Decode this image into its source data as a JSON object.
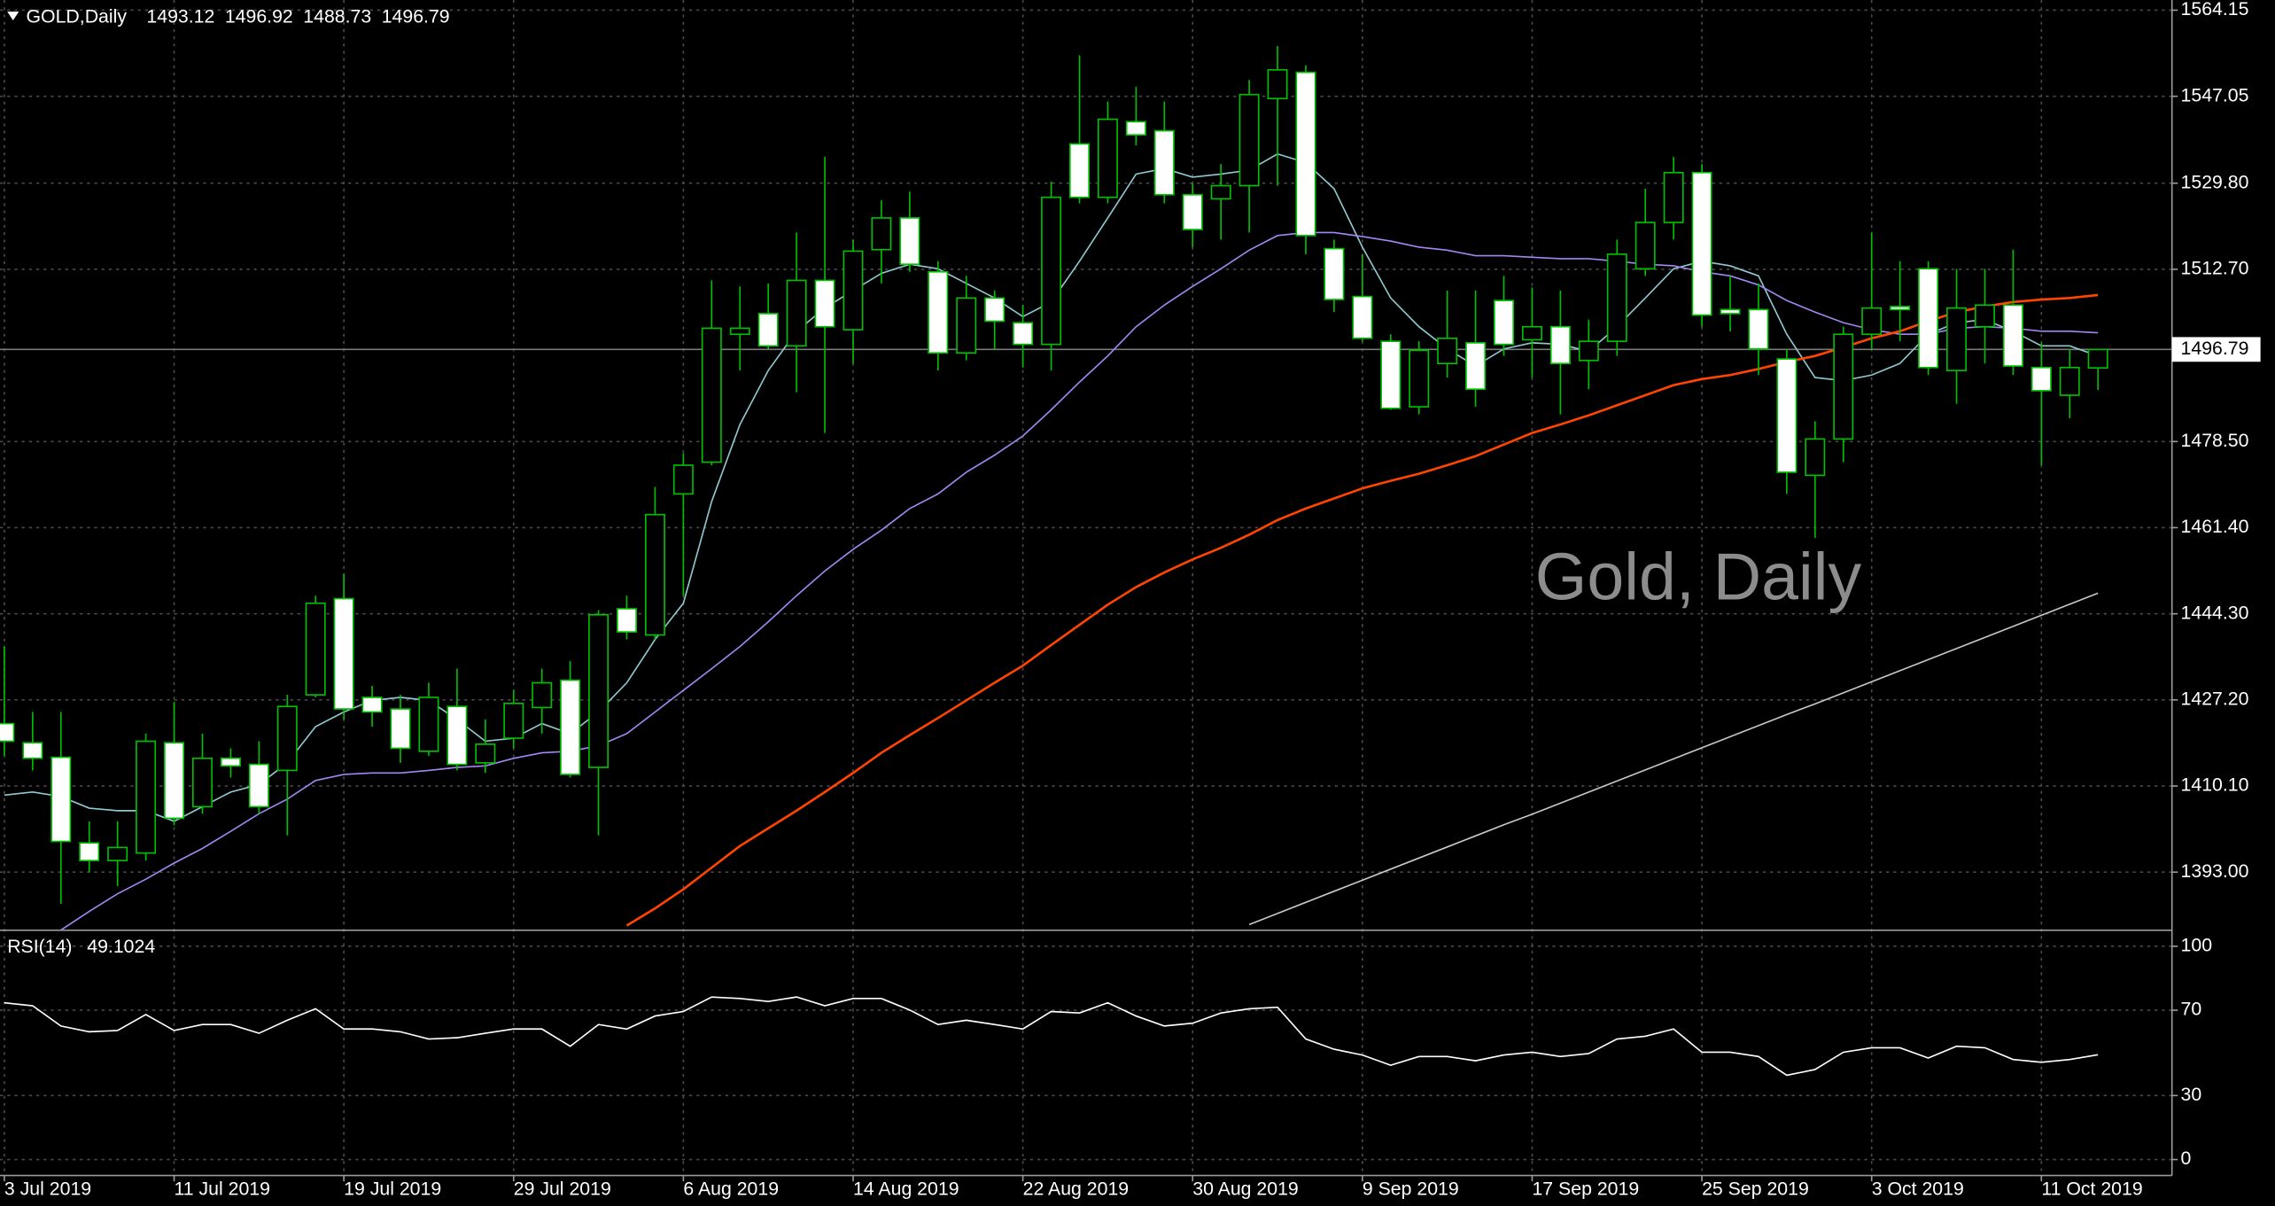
{
  "chart_data": [
    {
      "type": "candlestick",
      "title": "GOLD,Daily",
      "watermark": "Gold, Daily",
      "categories": [
        "3 Jul 2019",
        null,
        null,
        null,
        null,
        null,
        "11 Jul 2019",
        null,
        null,
        null,
        null,
        null,
        "19 Jul 2019",
        null,
        null,
        null,
        null,
        null,
        "29 Jul 2019",
        null,
        null,
        null,
        null,
        null,
        "6 Aug 2019",
        null,
        null,
        null,
        null,
        null,
        "14 Aug 2019",
        null,
        null,
        null,
        null,
        null,
        "22 Aug 2019",
        null,
        null,
        null,
        null,
        null,
        "30 Aug 2019",
        null,
        null,
        null,
        null,
        null,
        "9 Sep 2019",
        null,
        null,
        null,
        null,
        null,
        "17 Sep 2019",
        null,
        null,
        null,
        null,
        null,
        "25 Sep 2019",
        null,
        null,
        null,
        null,
        null,
        "3 Oct 2019",
        null,
        null,
        null,
        null,
        null,
        "11 Oct 2019",
        null,
        null
      ],
      "open": [
        1422.5,
        1418.7,
        1415.8,
        1398.8,
        1395.3,
        1396.8,
        1418.7,
        1406.0,
        1415.6,
        1414.4,
        1413.2,
        1428.2,
        1447.3,
        1427.7,
        1425.4,
        1417.0,
        1425.9,
        1414.7,
        1419.6,
        1425.7,
        1431.1,
        1413.8,
        1445.3,
        1440.1,
        1468.1,
        1474.4,
        1499.8,
        1503.9,
        1497.5,
        1510.5,
        1500.7,
        1516.6,
        1522.9,
        1512.2,
        1496.1,
        1507.0,
        1502.1,
        1497.8,
        1537.6,
        1527.0,
        1542.0,
        1540.2,
        1527.5,
        1526.7,
        1529.3,
        1546.6,
        1551.8,
        1516.8,
        1507.3,
        1498.4,
        1485.4,
        1494.0,
        1498.1,
        1506.5,
        1498.7,
        1501.3,
        1494.6,
        1498.4,
        1512.8,
        1522.0,
        1531.9,
        1504.7,
        1504.7,
        1494.9,
        1471.8,
        1479.0,
        1499.8,
        1505.3,
        1512.8,
        1492.6,
        1501.3,
        1505.6,
        1493.2,
        1487.7,
        1493.12
      ],
      "high": [
        1437.8,
        1424.8,
        1424.8,
        1403.1,
        1403.1,
        1420.5,
        1426.8,
        1420.5,
        1417.6,
        1419.0,
        1428.2,
        1447.9,
        1452.2,
        1430.0,
        1428.2,
        1430.6,
        1433.4,
        1423.3,
        1429.1,
        1433.4,
        1434.9,
        1445.0,
        1447.9,
        1469.5,
        1476.2,
        1510.5,
        1509.3,
        1509.9,
        1520.0,
        1535.0,
        1518.6,
        1526.4,
        1528.1,
        1514.3,
        1511.4,
        1508.5,
        1505.6,
        1530.1,
        1555.2,
        1546.0,
        1548.9,
        1546.0,
        1529.8,
        1533.6,
        1550.3,
        1557.0,
        1553.2,
        1518.6,
        1515.7,
        1499.8,
        1498.4,
        1508.5,
        1508.5,
        1511.4,
        1509.1,
        1508.5,
        1502.7,
        1518.6,
        1528.7,
        1535.0,
        1533.6,
        1511.4,
        1509.9,
        1496.9,
        1482.5,
        1501.3,
        1520.0,
        1514.3,
        1514.3,
        1512.8,
        1512.8,
        1516.6,
        1498.1,
        1496.9,
        1496.92
      ],
      "low": [
        1416.1,
        1413.2,
        1386.7,
        1393.0,
        1390.2,
        1395.3,
        1402.3,
        1404.6,
        1411.8,
        1404.6,
        1400.3,
        1427.7,
        1423.3,
        1421.9,
        1414.7,
        1416.1,
        1413.2,
        1412.7,
        1417.6,
        1420.5,
        1411.8,
        1400.3,
        1439.2,
        1439.2,
        1447.9,
        1473.8,
        1492.6,
        1496.9,
        1488.3,
        1480.2,
        1494.0,
        1509.9,
        1512.2,
        1492.6,
        1494.6,
        1496.9,
        1493.2,
        1492.6,
        1525.8,
        1525.8,
        1537.3,
        1525.8,
        1517.1,
        1518.6,
        1520.0,
        1529.3,
        1515.7,
        1504.2,
        1498.4,
        1484.8,
        1483.9,
        1491.2,
        1485.4,
        1495.5,
        1491.2,
        1483.9,
        1488.9,
        1495.5,
        1511.4,
        1518.6,
        1501.3,
        1500.4,
        1491.7,
        1468.1,
        1459.4,
        1474.4,
        1496.9,
        1498.4,
        1491.7,
        1486.0,
        1494.0,
        1491.7,
        1473.8,
        1483.1,
        1488.73
      ],
      "close": [
        1419.0,
        1415.6,
        1399.1,
        1395.3,
        1397.9,
        1419.0,
        1403.7,
        1415.6,
        1414.1,
        1406.0,
        1425.9,
        1446.4,
        1425.4,
        1424.8,
        1417.6,
        1427.7,
        1414.4,
        1418.4,
        1426.5,
        1430.6,
        1412.4,
        1444.1,
        1440.7,
        1464.0,
        1473.8,
        1501.0,
        1501.0,
        1497.5,
        1510.5,
        1501.3,
        1516.3,
        1522.9,
        1513.7,
        1496.1,
        1507.0,
        1502.4,
        1497.8,
        1527.0,
        1527.0,
        1542.5,
        1539.4,
        1527.5,
        1520.6,
        1529.3,
        1547.4,
        1552.3,
        1519.4,
        1506.7,
        1499.0,
        1485.1,
        1496.6,
        1499.0,
        1488.9,
        1497.8,
        1501.3,
        1494.0,
        1498.4,
        1515.7,
        1522.0,
        1531.9,
        1503.6,
        1503.9,
        1496.9,
        1472.4,
        1479.0,
        1499.8,
        1505.0,
        1504.7,
        1493.2,
        1505.0,
        1505.6,
        1493.5,
        1488.6,
        1493.2,
        1496.79
      ],
      "up_color": "#000000",
      "down_color": "#ffffff",
      "wick_color": "#00c000",
      "series": [
        {
          "color": "#8fc9d0",
          "values": [
            1408.3,
            1408.9,
            1408.0,
            1405.7,
            1405.2,
            1405.2,
            1403.1,
            1406.0,
            1408.9,
            1410.4,
            1414.7,
            1421.9,
            1424.8,
            1427.1,
            1427.7,
            1427.1,
            1423.3,
            1419.0,
            1419.6,
            1422.5,
            1420.5,
            1424.8,
            1430.6,
            1439.2,
            1446.4,
            1466.6,
            1481.9,
            1492.6,
            1500.4,
            1505.0,
            1508.5,
            1511.9,
            1513.7,
            1512.8,
            1509.9,
            1507.0,
            1503.3,
            1506.2,
            1514.3,
            1522.9,
            1531.6,
            1532.7,
            1531.0,
            1531.6,
            1532.4,
            1535.6,
            1533.9,
            1528.7,
            1517.1,
            1507.0,
            1501.3,
            1496.9,
            1493.5,
            1496.9,
            1498.1,
            1497.8,
            1496.4,
            1501.3,
            1507.0,
            1512.8,
            1514.3,
            1513.4,
            1511.4,
            1499.8,
            1491.2,
            1490.6,
            1491.7,
            1494.0,
            1499.8,
            1502.1,
            1502.7,
            1500.4,
            1497.5,
            1497.5,
            1495.5
          ]
        },
        {
          "color": "#a287f0",
          "values": [
            null,
            null,
            1381.5,
            1385.2,
            1388.7,
            1391.6,
            1394.8,
            1397.7,
            1401.1,
            1404.6,
            1407.5,
            1411.2,
            1412.4,
            1412.7,
            1412.7,
            1413.2,
            1413.8,
            1414.1,
            1415.6,
            1416.7,
            1417.0,
            1418.1,
            1420.5,
            1424.8,
            1429.1,
            1433.4,
            1437.8,
            1442.7,
            1447.9,
            1452.8,
            1457.1,
            1460.9,
            1465.2,
            1468.1,
            1472.4,
            1475.8,
            1479.6,
            1484.8,
            1490.3,
            1495.5,
            1501.3,
            1505.6,
            1509.3,
            1512.8,
            1516.5,
            1519.4,
            1520.0,
            1520.0,
            1519.2,
            1518.3,
            1517.1,
            1516.5,
            1515.4,
            1515.4,
            1515.1,
            1514.8,
            1514.8,
            1514.3,
            1513.7,
            1513.4,
            1512.2,
            1511.4,
            1509.6,
            1506.5,
            1504.2,
            1502.1,
            1500.7,
            1499.8,
            1499.8,
            1501.0,
            1501.3,
            1501.0,
            1500.4,
            1500.4,
            1500.1
          ]
        },
        {
          "color": "#ff4500",
          "values": [
            null,
            null,
            null,
            null,
            null,
            null,
            null,
            null,
            null,
            null,
            null,
            null,
            null,
            null,
            null,
            null,
            null,
            null,
            null,
            null,
            null,
            null,
            1382.4,
            1385.8,
            1389.6,
            1393.9,
            1398.2,
            1401.7,
            1405.2,
            1408.9,
            1412.7,
            1416.7,
            1420.2,
            1423.6,
            1427.1,
            1430.6,
            1434.0,
            1438.1,
            1442.1,
            1446.1,
            1449.6,
            1452.5,
            1455.1,
            1457.4,
            1460.0,
            1462.9,
            1465.2,
            1467.2,
            1469.2,
            1470.7,
            1472.1,
            1473.8,
            1475.6,
            1477.9,
            1480.2,
            1481.9,
            1483.7,
            1485.7,
            1487.7,
            1489.7,
            1490.9,
            1491.7,
            1492.9,
            1494.3,
            1495.5,
            1497.2,
            1499.0,
            1500.4,
            1502.4,
            1504.2,
            1505.3,
            1506.2,
            1506.7,
            1507.0,
            1507.6
          ]
        },
        {
          "color": "#c8c8c8",
          "values": [
            null,
            null,
            null,
            null,
            null,
            null,
            null,
            null,
            null,
            null,
            null,
            null,
            null,
            null,
            null,
            null,
            null,
            null,
            null,
            null,
            null,
            null,
            null,
            null,
            null,
            null,
            null,
            null,
            null,
            null,
            null,
            null,
            null,
            null,
            null,
            null,
            null,
            null,
            null,
            null,
            null,
            null,
            null,
            null,
            1382.6,
            1384.8,
            1387.0,
            1389.2,
            1391.4,
            1393.6,
            1395.8,
            1398.0,
            1400.2,
            1402.4,
            1404.5,
            1406.7,
            1408.9,
            1411.1,
            1413.3,
            1415.5,
            1417.7,
            1419.9,
            1422.1,
            1424.3,
            1426.4,
            1428.6,
            1430.8,
            1433.0,
            1435.2,
            1437.4,
            1439.6,
            1441.8,
            1444.0,
            1446.2,
            1448.4
          ]
        }
      ],
      "ylim": [
        1381.46,
        1566.17
      ],
      "yticks": [
        1564.15,
        1547.05,
        {
          "value": 1529.8,
          "label": "1529.80"
        },
        {
          "value": 1512.7,
          "label": "1512.70"
        },
        {
          "value": 1478.5,
          "label": "1478.50"
        },
        {
          "value": 1461.4,
          "label": "1461.40"
        },
        {
          "value": 1444.3,
          "label": "1444.30"
        },
        {
          "value": 1427.2,
          "label": "1427.20"
        },
        {
          "value": 1410.1,
          "label": "1410.10"
        },
        {
          "value": 1393,
          "label": "1393.00"
        }
      ],
      "grid": true
    },
    {
      "type": "line",
      "title": "RSI(14)",
      "color": "#ffffff",
      "values": [
        73.5,
        72.1,
        62.6,
        59.9,
        60.5,
        68.0,
        60.5,
        63.3,
        63.3,
        59.2,
        65.3,
        70.7,
        61.2,
        61.2,
        59.9,
        56.5,
        57.1,
        59.2,
        61.2,
        61.2,
        53.1,
        63.3,
        61.2,
        67.3,
        69.4,
        76.2,
        75.5,
        74.1,
        76.2,
        72.1,
        75.5,
        75.5,
        70.1,
        63.3,
        65.3,
        63.3,
        61.2,
        69.4,
        68.7,
        73.5,
        67.3,
        62.6,
        63.9,
        68.7,
        70.7,
        71.4,
        56.5,
        51.7,
        49.0,
        44.2,
        48.3,
        48.3,
        46.3,
        49.0,
        50.3,
        48.3,
        49.7,
        56.5,
        57.8,
        61.2,
        50.3,
        50.3,
        48.3,
        39.5,
        42.2,
        50.3,
        52.4,
        52.4,
        47.6,
        53.1,
        52.4,
        46.9,
        45.6,
        46.9,
        49.1024
      ],
      "ylim": [
        -7.5,
        107.5
      ],
      "yticks": [
        100,
        70,
        30,
        0
      ],
      "grid": true
    }
  ]
}
